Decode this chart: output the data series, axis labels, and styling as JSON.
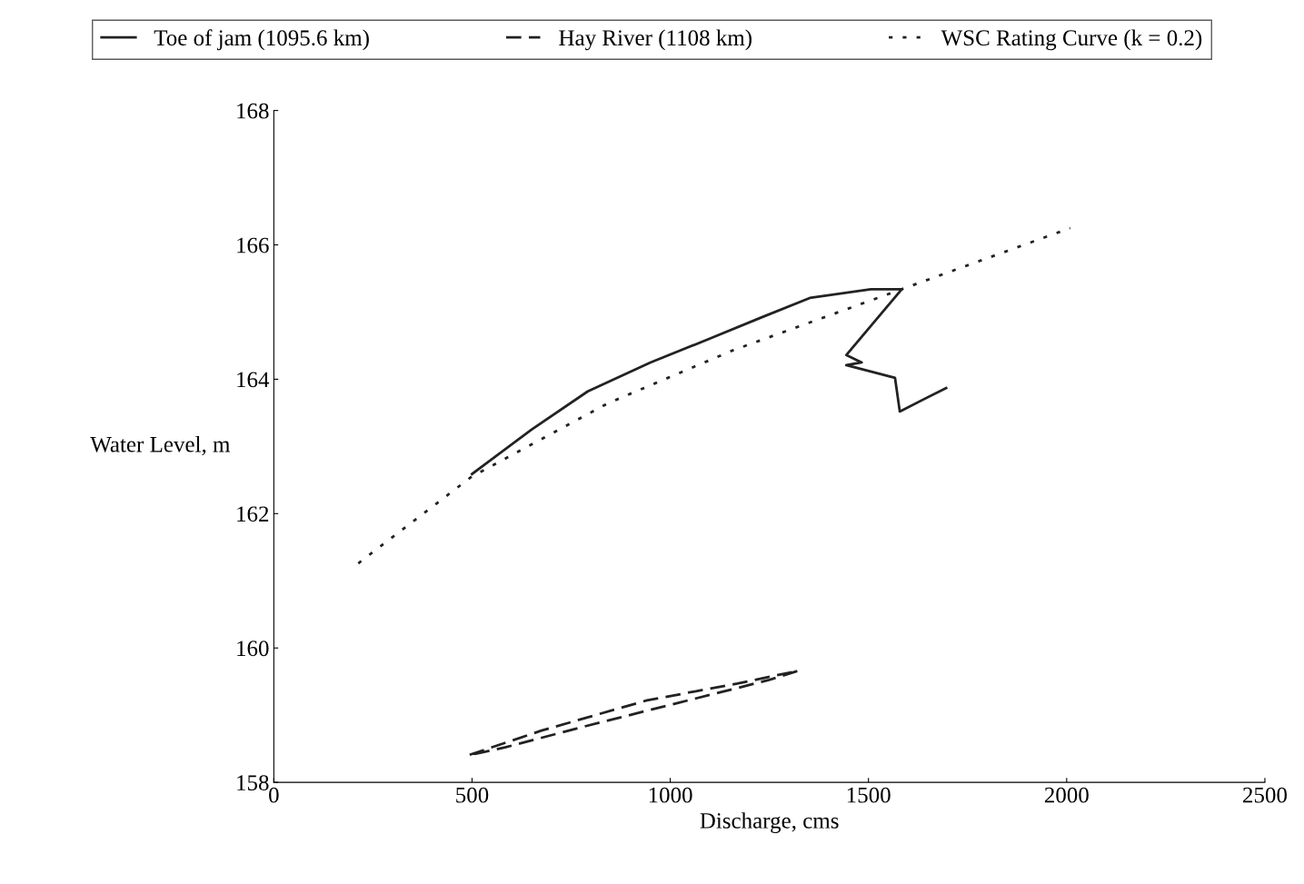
{
  "chart_data": {
    "type": "line",
    "xlabel": "Discharge, cms",
    "ylabel": "Water Level, m",
    "xlim": [
      0,
      2500
    ],
    "xticks": [
      0,
      500,
      1000,
      1500,
      2000,
      2500
    ],
    "ylim": [
      158,
      168
    ],
    "yticks": [
      158,
      160,
      162,
      164,
      166,
      168
    ],
    "grid": false,
    "legend": "top",
    "marker": "none",
    "series": [
      {
        "name": "Toe of jam (1095.6 km)",
        "color": "#222222",
        "line_style": "solid",
        "x": [
          500,
          650,
          792,
          950,
          1098,
          1230,
          1352,
          1506,
          1584,
          1444,
          1483,
          1444,
          1567,
          1579,
          1696
        ],
        "values": [
          162.59,
          163.25,
          163.82,
          164.25,
          164.6,
          164.92,
          165.21,
          165.34,
          165.34,
          164.36,
          164.25,
          164.21,
          164.02,
          163.52,
          163.87
        ]
      },
      {
        "name": "Hay River (1108 km)",
        "color": "#222222",
        "line_style": "dashed",
        "x": [
          494,
          675,
          941,
          1169,
          1323,
          1247,
          1018,
          789,
          583,
          506
        ],
        "values": [
          158.41,
          158.77,
          159.22,
          159.47,
          159.66,
          159.52,
          159.18,
          158.84,
          158.52,
          158.42
        ]
      },
      {
        "name": "WSC Rating Curve (k = 0.2)",
        "color": "#222222",
        "line_style": "dotted",
        "x": [
          213,
          499,
          842,
          1158,
          1584,
          2009
        ],
        "values": [
          161.26,
          162.55,
          163.64,
          164.43,
          165.34,
          166.25
        ]
      }
    ]
  }
}
